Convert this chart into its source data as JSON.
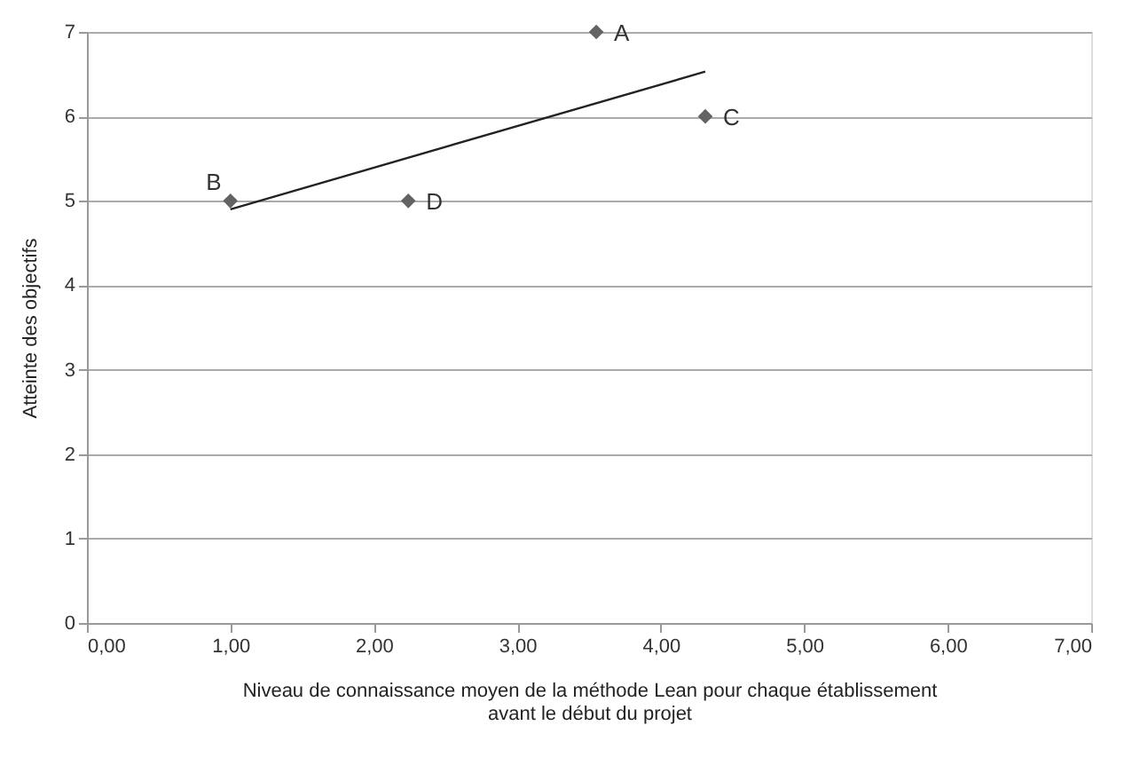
{
  "chart_data": {
    "type": "scatter",
    "xlabel": "Niveau de connaissance moyen de la méthode Lean pour chaque établissement\navant le début du projet",
    "ylabel": "Atteinte des objectifs",
    "series": [
      {
        "color": "#636363",
        "x": [
          3.55,
          1.0,
          4.31,
          2.24
        ],
        "values": [
          7,
          5,
          6,
          5
        ],
        "marker": "diamond"
      },
      {
        "type": "line",
        "color": "#222222",
        "x": [
          1.0,
          4.31
        ],
        "values": [
          4.9,
          6.53
        ],
        "marker": "none"
      }
    ],
    "annotations": [
      {
        "text": "A",
        "x": 3.55,
        "y": 7
      },
      {
        "text": "B",
        "x": 1.0,
        "y": 5
      },
      {
        "text": "C",
        "x": 4.31,
        "y": 6
      },
      {
        "text": "D",
        "x": 2.24,
        "y": 5
      }
    ],
    "xlim": [
      0,
      7
    ],
    "xticks": [
      {
        "value": 0,
        "label": "0,00"
      },
      {
        "value": 1,
        "label": "1,00"
      },
      {
        "value": 2,
        "label": "2,00"
      },
      {
        "value": 3,
        "label": "3,00"
      },
      {
        "value": 4,
        "label": "4,00"
      },
      {
        "value": 5,
        "label": "5,00"
      },
      {
        "value": 6,
        "label": "6,00"
      },
      {
        "value": 7,
        "label": "7,00"
      }
    ],
    "ylim": [
      0,
      7
    ],
    "yticks": [
      0,
      1,
      2,
      3,
      4,
      5,
      6,
      7
    ],
    "grid": "y"
  }
}
